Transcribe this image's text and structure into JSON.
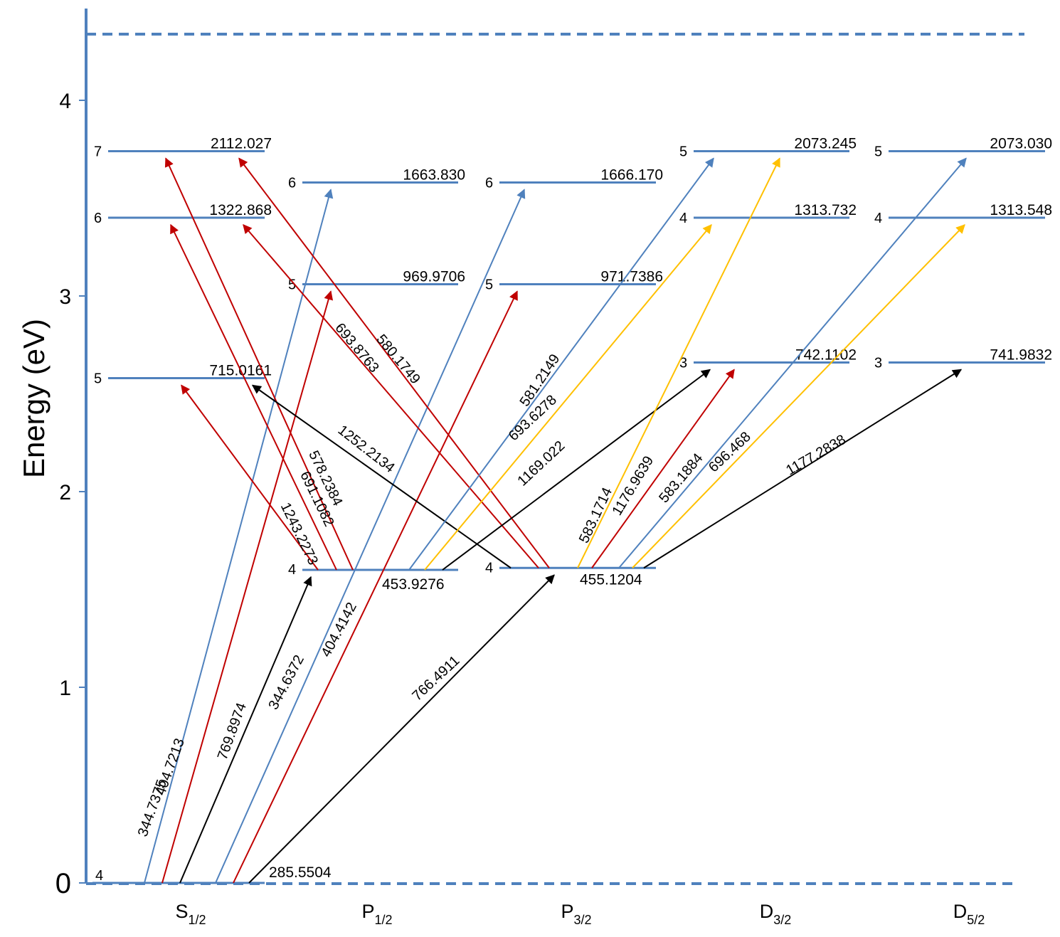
{
  "diagram": {
    "ylabel": "Energy (eV)",
    "y_ticks": [
      {
        "value": 0,
        "label": "0"
      },
      {
        "value": 1,
        "label": "1"
      },
      {
        "value": 2,
        "label": "2"
      },
      {
        "value": 3,
        "label": "3"
      },
      {
        "value": 4,
        "label": "4"
      }
    ],
    "columns": [
      {
        "key": "S",
        "main": "S",
        "sub": "1/2"
      },
      {
        "key": "P1",
        "main": "P",
        "sub": "1/2"
      },
      {
        "key": "P3",
        "main": "P",
        "sub": "3/2"
      },
      {
        "key": "D3",
        "main": "D",
        "sub": "3/2"
      },
      {
        "key": "D5",
        "main": "D",
        "sub": "5/2"
      }
    ],
    "colors": {
      "axis": "#4f81bd",
      "levels": "#4f81bd",
      "blue": "#4f81bd",
      "red": "#c00000",
      "gold": "#ffc000",
      "black": "#000000"
    },
    "levels": [
      {
        "id": "S4",
        "column": "S",
        "n": "4",
        "energy_ev": 0.0,
        "value_label": "285.5504"
      },
      {
        "id": "S5",
        "column": "S",
        "n": "5",
        "energy_ev": 2.58,
        "value_label": "715.0161"
      },
      {
        "id": "S6",
        "column": "S",
        "n": "6",
        "energy_ev": 3.4,
        "value_label": "1322.868"
      },
      {
        "id": "S7",
        "column": "S",
        "n": "7",
        "energy_ev": 3.74,
        "value_label": "2112.027"
      },
      {
        "id": "P1_4",
        "column": "P1",
        "n": "4",
        "energy_ev": 1.6,
        "value_label": "453.9276"
      },
      {
        "id": "P1_5",
        "column": "P1",
        "n": "5",
        "energy_ev": 3.06,
        "value_label": "969.9706"
      },
      {
        "id": "P1_6",
        "column": "P1",
        "n": "6",
        "energy_ev": 3.58,
        "value_label": "1663.830"
      },
      {
        "id": "P3_4",
        "column": "P3",
        "n": "4",
        "energy_ev": 1.61,
        "value_label": "455.1204"
      },
      {
        "id": "P3_5",
        "column": "P3",
        "n": "5",
        "energy_ev": 3.06,
        "value_label": "971.7386"
      },
      {
        "id": "P3_6",
        "column": "P3",
        "n": "6",
        "energy_ev": 3.58,
        "value_label": "1666.170"
      },
      {
        "id": "D3_3",
        "column": "D3",
        "n": "3",
        "energy_ev": 2.66,
        "value_label": "742.1102"
      },
      {
        "id": "D3_4",
        "column": "D3",
        "n": "4",
        "energy_ev": 3.4,
        "value_label": "1313.732"
      },
      {
        "id": "D3_5",
        "column": "D3",
        "n": "5",
        "energy_ev": 3.74,
        "value_label": "2073.245"
      },
      {
        "id": "D5_3",
        "column": "D5",
        "n": "3",
        "energy_ev": 2.66,
        "value_label": "741.9832"
      },
      {
        "id": "D5_4",
        "column": "D5",
        "n": "4",
        "energy_ev": 3.4,
        "value_label": "1313.548"
      },
      {
        "id": "D5_5",
        "column": "D5",
        "n": "5",
        "energy_ev": 3.74,
        "value_label": "2073.030"
      }
    ],
    "transitions": [
      {
        "from": "S4",
        "to": "P1_6",
        "color": "blue",
        "label": "344.7375"
      },
      {
        "from": "S4",
        "to": "P1_5",
        "color": "red",
        "label": "404.7213"
      },
      {
        "from": "S4",
        "to": "P1_4",
        "color": "black",
        "label": "769.8974"
      },
      {
        "from": "S4",
        "to": "P3_6",
        "color": "blue",
        "label": "344.6372"
      },
      {
        "from": "S4",
        "to": "P3_5",
        "color": "red",
        "label": "404.4142"
      },
      {
        "from": "S4",
        "to": "P3_4",
        "color": "black",
        "label": "766.4911"
      },
      {
        "from": "P1_4",
        "to": "S5",
        "color": "red",
        "label": "1243.2273"
      },
      {
        "from": "P1_4",
        "to": "S6",
        "color": "red",
        "label": "691.1082"
      },
      {
        "from": "P1_4",
        "to": "S7",
        "color": "red",
        "label": "578.2384"
      },
      {
        "from": "P3_4",
        "to": "S5",
        "color": "black",
        "label": "1252.2134"
      },
      {
        "from": "P3_4",
        "to": "S6",
        "color": "red",
        "label": "693.8763"
      },
      {
        "from": "P3_4",
        "to": "S7",
        "color": "red",
        "label": "580.1749"
      },
      {
        "from": "P1_4",
        "to": "D3_3",
        "color": "black",
        "label": "1169.022"
      },
      {
        "from": "P1_4",
        "to": "D3_4",
        "color": "gold",
        "label": "693.6278"
      },
      {
        "from": "P1_4",
        "to": "D3_5",
        "color": "blue",
        "label": "581.2149"
      },
      {
        "from": "P3_4",
        "to": "D3_5",
        "color": "gold",
        "label": "583.1714"
      },
      {
        "from": "P3_4",
        "to": "D3_3",
        "color": "red",
        "label": "1176.9639"
      },
      {
        "from": "P3_4",
        "to": "D5_5",
        "color": "blue",
        "label": "583.1884"
      },
      {
        "from": "P3_4",
        "to": "D5_4",
        "color": "gold",
        "label": "696.468"
      },
      {
        "from": "P3_4",
        "to": "D5_3",
        "color": "black",
        "label": "1177.2838"
      }
    ]
  }
}
